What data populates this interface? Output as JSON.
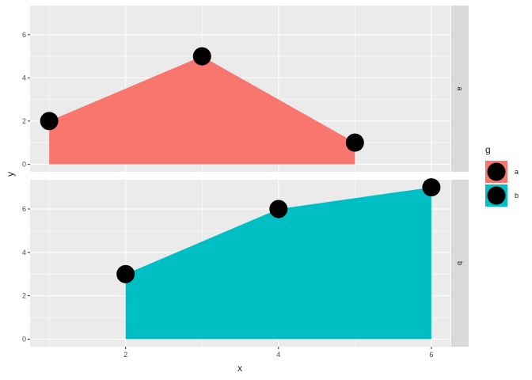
{
  "chart_data": {
    "type": "area",
    "facet_by": "g",
    "xlabel": "x",
    "ylabel": "y",
    "xlim": [
      0.75,
      6.25
    ],
    "ylim": [
      -0.35,
      7.35
    ],
    "x_ticks": [
      2,
      4,
      6
    ],
    "y_ticks": [
      0,
      2,
      4,
      6
    ],
    "grid": true,
    "legend": {
      "title": "g",
      "placement": "right",
      "entries": [
        {
          "label": "a",
          "color": "#F8766D"
        },
        {
          "label": "b",
          "color": "#00BFC4"
        }
      ]
    },
    "series": [
      {
        "name": "a",
        "color": "#F8766D",
        "x": [
          1,
          3,
          5
        ],
        "y": [
          2,
          5,
          1
        ]
      },
      {
        "name": "b",
        "color": "#00BFC4",
        "x": [
          2,
          4,
          6
        ],
        "y": [
          3,
          6,
          7
        ]
      }
    ],
    "point_color": "#000000"
  }
}
